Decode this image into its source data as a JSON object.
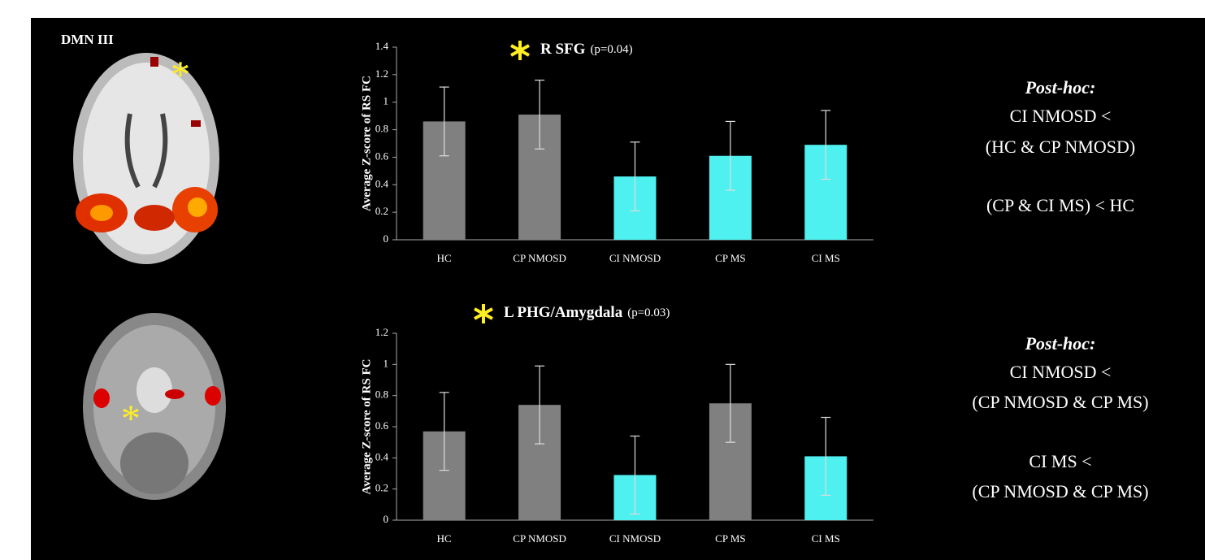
{
  "panel_label": "DMN III",
  "chart_data": [
    {
      "type": "bar",
      "title": "R SFG",
      "subtitle": "(p=0.04)",
      "y_label": "Average Z-score of RS FC",
      "categories": [
        "HC",
        "CP NMOSD",
        "CI NMOSD",
        "CP MS",
        "CI MS"
      ],
      "values": [
        0.86,
        0.91,
        0.46,
        0.61,
        0.69
      ],
      "errors": [
        0.25,
        0.25,
        0.25,
        0.25,
        0.25
      ],
      "colors": [
        "#808080",
        "#808080",
        "#4ff0f0",
        "#4ff0f0",
        "#4ff0f0"
      ],
      "ylim": [
        0,
        1.4
      ],
      "yticks": [
        0,
        0.2,
        0.4,
        0.6,
        0.8,
        1,
        1.2,
        1.4
      ]
    },
    {
      "type": "bar",
      "title": "L PHG/Amygdala",
      "subtitle": "(p=0.03)",
      "y_label": "Average Z-score of RS FC",
      "categories": [
        "HC",
        "CP NMOSD",
        "CI NMOSD",
        "CP MS",
        "CI MS"
      ],
      "values": [
        0.57,
        0.74,
        0.29,
        0.75,
        0.41
      ],
      "errors": [
        0.25,
        0.25,
        0.25,
        0.25,
        0.25
      ],
      "colors": [
        "#808080",
        "#808080",
        "#4ff0f0",
        "#808080",
        "#4ff0f0"
      ],
      "ylim": [
        0,
        1.2
      ],
      "yticks": [
        0,
        0.2,
        0.4,
        0.6,
        0.8,
        1,
        1.2
      ]
    }
  ],
  "posthoc": [
    {
      "heading": "Post-hoc:",
      "lines": [
        "CI NMOSD <",
        "(HC & CP NMOSD)",
        "(CP & CI MS) < HC"
      ]
    },
    {
      "heading": "Post-hoc:",
      "lines": [
        "CI NMOSD <",
        "(CP NMOSD  & CP MS)",
        "CI MS <",
        "(CP NMOSD  & CP MS)"
      ]
    }
  ]
}
